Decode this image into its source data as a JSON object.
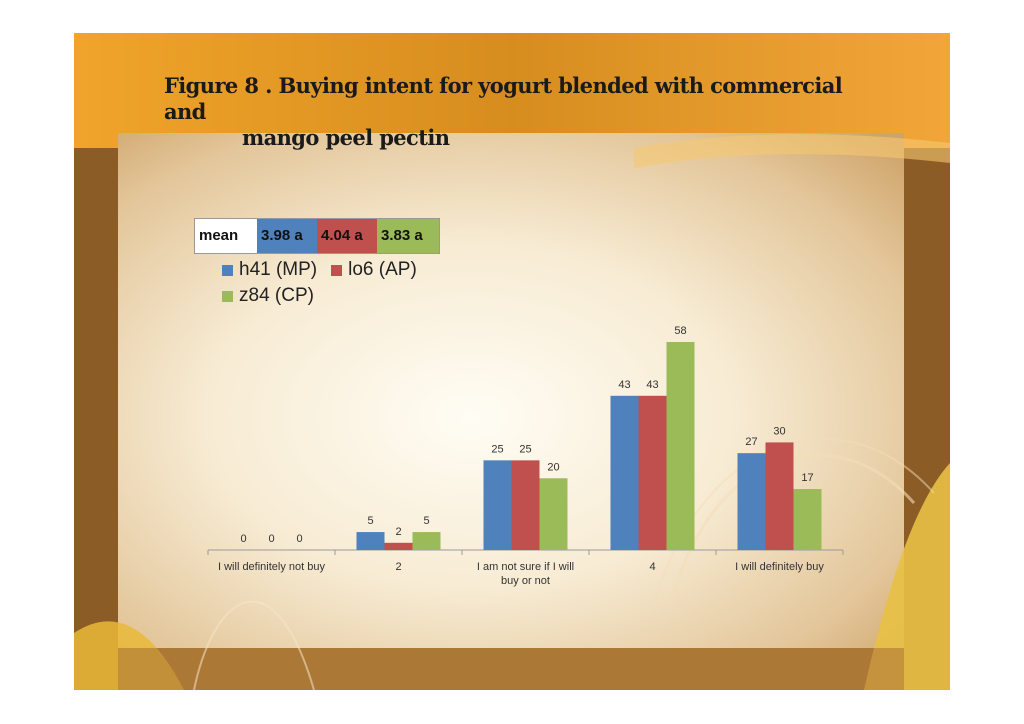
{
  "title_line1": "Figure 8 . Buying intent for yogurt blended with commercial and",
  "title_line2": "mango peel pectin",
  "mean_table": {
    "label": "mean",
    "cells": [
      {
        "value": "3.98 a",
        "color": "#4f81bd"
      },
      {
        "value": "4.04 a",
        "color": "#c0504d"
      },
      {
        "value": "3.83 a",
        "color": "#9bbb59"
      }
    ]
  },
  "chart_data": {
    "type": "bar",
    "title": "",
    "xlabel": "",
    "ylabel": "",
    "ylim": [
      0,
      60
    ],
    "grid": false,
    "legend_placement": "top-left",
    "categories": [
      "I will definitely not buy",
      "2",
      "I am not sure if I  will buy or not",
      "4",
      "I will definitely buy"
    ],
    "series": [
      {
        "name": "h41 (MP)",
        "color": "#4f81bd",
        "values": [
          0,
          5,
          25,
          43,
          27
        ]
      },
      {
        "name": "lo6 (AP)",
        "color": "#c0504d",
        "values": [
          0,
          2,
          25,
          43,
          30
        ]
      },
      {
        "name": "z84 (CP)",
        "color": "#9bbb59",
        "values": [
          0,
          5,
          20,
          58,
          17
        ]
      }
    ]
  }
}
